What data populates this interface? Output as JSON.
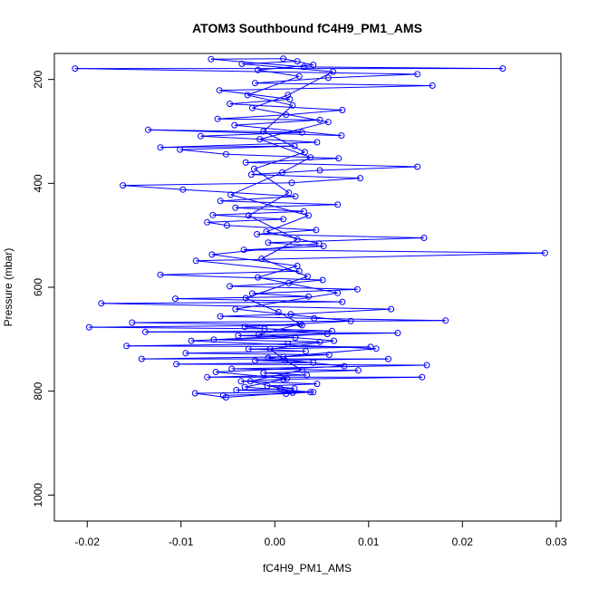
{
  "chart_data": {
    "type": "scatter",
    "title": "ATOM3 Southbound fC4H9_PM1_AMS",
    "xlabel": "fC4H9_PM1_AMS",
    "ylabel": "Pressure (mbar)",
    "xlim": [
      -0.0235,
      0.0305
    ],
    "ylim": [
      1050,
      150
    ],
    "y_reversed": true,
    "grid": false,
    "legend": "none",
    "x_ticks": [
      -0.02,
      -0.01,
      0.0,
      0.01,
      0.02,
      0.03
    ],
    "x_tick_labels": [
      "-0.02",
      "-0.01",
      "0.00",
      "0.01",
      "0.02",
      "0.03"
    ],
    "y_ticks": [
      200,
      400,
      600,
      800,
      1000
    ],
    "y_tick_labels": [
      "200",
      "400",
      "600",
      "800",
      "1000"
    ],
    "series": [
      {
        "color": "#0000ff",
        "marker": "open-circle",
        "connected": true,
        "points": [
          [
            -0.0055,
            808
          ],
          [
            0.0012,
            805
          ],
          [
            0.0038,
            802
          ],
          [
            -0.0041,
            798
          ],
          [
            0.0021,
            795
          ],
          [
            -0.0008,
            790
          ],
          [
            0.0045,
            786
          ],
          [
            -0.0036,
            781
          ],
          [
            0.0009,
            777
          ],
          [
            0.0157,
            773
          ],
          [
            -0.0072,
            773
          ],
          [
            0.0034,
            769
          ],
          [
            -0.0012,
            765
          ],
          [
            0.0089,
            760
          ],
          [
            -0.0046,
            757
          ],
          [
            0.0162,
            750
          ],
          [
            -0.0105,
            748
          ],
          [
            0.0041,
            745
          ],
          [
            -0.0021,
            741
          ],
          [
            0.0121,
            738
          ],
          [
            -0.0142,
            738
          ],
          [
            0.0009,
            734
          ],
          [
            0.0058,
            730
          ],
          [
            -0.0095,
            727
          ],
          [
            0.0033,
            723
          ],
          [
            -0.0028,
            719
          ],
          [
            0.0102,
            715
          ],
          [
            -0.0158,
            713
          ],
          [
            0.0014,
            709
          ],
          [
            0.0048,
            705
          ],
          [
            -0.0065,
            701
          ],
          [
            0.0022,
            697
          ],
          [
            -0.0039,
            693
          ],
          [
            0.0131,
            688
          ],
          [
            -0.0138,
            686
          ],
          [
            0.0061,
            684
          ],
          [
            -0.0011,
            680
          ],
          [
            -0.0198,
            677
          ],
          [
            0.0029,
            673
          ],
          [
            -0.0152,
            668
          ],
          [
            0.0182,
            664
          ],
          [
            0.0042,
            660
          ],
          [
            -0.0058,
            656
          ],
          [
            0.0017,
            652
          ],
          [
            0.0124,
            642
          ],
          [
            -0.0185,
            631
          ],
          [
            0.0072,
            628
          ],
          [
            -0.0106,
            622
          ],
          [
            0.0036,
            618
          ],
          [
            -0.0024,
            612
          ],
          [
            0.0088,
            604
          ],
          [
            -0.0048,
            598
          ],
          [
            0.0015,
            592
          ],
          [
            0.0051,
            586
          ],
          [
            -0.0122,
            576
          ],
          [
            0.0026,
            569
          ],
          [
            -0.0084,
            549
          ],
          [
            0.0288,
            534
          ],
          [
            -0.0033,
            528
          ],
          [
            0.0052,
            521
          ],
          [
            -0.0007,
            514
          ],
          [
            0.0159,
            505
          ],
          [
            -0.0019,
            498
          ],
          [
            0.0044,
            490
          ],
          [
            -0.0051,
            481
          ],
          [
            -0.0072,
            475
          ],
          [
            0.0009,
            469
          ],
          [
            -0.0066,
            461
          ],
          [
            0.0031,
            454
          ],
          [
            -0.0042,
            447
          ],
          [
            0.0067,
            441
          ],
          [
            -0.0058,
            434
          ],
          [
            0.0022,
            425
          ],
          [
            -0.0098,
            412
          ],
          [
            -0.0162,
            404
          ],
          [
            0.0018,
            399
          ],
          [
            0.0091,
            390
          ],
          [
            -0.0025,
            383
          ],
          [
            0.0048,
            375
          ],
          [
            0.0152,
            368
          ],
          [
            -0.0031,
            360
          ],
          [
            0.0068,
            352
          ],
          [
            -0.0052,
            344
          ],
          [
            -0.0101,
            335
          ],
          [
            0.0021,
            328
          ],
          [
            -0.0122,
            331
          ],
          [
            0.0045,
            321
          ],
          [
            -0.0079,
            309
          ],
          [
            0.0029,
            302
          ],
          [
            -0.0135,
            297
          ],
          [
            0.0071,
            308
          ],
          [
            -0.0043,
            288
          ],
          [
            0.0048,
            278
          ],
          [
            -0.0061,
            276
          ],
          [
            0.0012,
            268
          ],
          [
            0.0072,
            259
          ],
          [
            -0.0048,
            247
          ],
          [
            0.0016,
            238
          ],
          [
            -0.0059,
            221
          ],
          [
            0.0168,
            212
          ],
          [
            -0.0021,
            207
          ],
          [
            0.0057,
            197
          ],
          [
            0.0152,
            190
          ],
          [
            -0.0213,
            179
          ],
          [
            0.0243,
            179
          ],
          [
            0.0031,
            176
          ],
          [
            -0.0068,
            161
          ],
          [
            0.0009,
            160
          ],
          [
            0.0041,
            172
          ],
          [
            -0.0018,
            182
          ],
          [
            0.0026,
            194
          ],
          [
            -0.0029,
            230
          ],
          [
            0.0019,
            250
          ],
          [
            -0.0012,
            300
          ],
          [
            0.0032,
            340
          ],
          [
            -0.0022,
            372
          ],
          [
            0.0015,
            418
          ],
          [
            -0.0028,
            462
          ],
          [
            0.0024,
            508
          ],
          [
            -0.0014,
            545
          ],
          [
            0.0035,
            579
          ],
          [
            -0.0031,
            621
          ],
          [
            0.0004,
            648
          ],
          [
            0.0027,
            671
          ],
          [
            -0.0017,
            691
          ],
          [
            0.0063,
            703
          ],
          [
            -0.0005,
            719
          ],
          [
            0.0011,
            741
          ],
          [
            0.0029,
            759
          ],
          [
            -0.0026,
            781
          ],
          [
            0.0006,
            795
          ],
          [
            0.0019,
            803
          ],
          [
            -0.0052,
            812
          ],
          [
            -0.0085,
            804
          ],
          [
            0.0041,
            802
          ],
          [
            -0.0032,
            792
          ],
          [
            0.0013,
            776
          ],
          [
            -0.0063,
            763
          ],
          [
            0.0074,
            752
          ],
          [
            -0.0007,
            736
          ],
          [
            0.0108,
            718
          ],
          [
            -0.0089,
            703
          ],
          [
            0.0056,
            690
          ],
          [
            -0.0032,
            676
          ],
          [
            0.0081,
            665
          ],
          [
            -0.0042,
            642
          ],
          [
            0.0067,
            611
          ],
          [
            -0.0018,
            581
          ],
          [
            0.0024,
            559
          ],
          [
            -0.0067,
            537
          ],
          [
            0.0047,
            516
          ],
          [
            -0.0009,
            493
          ],
          [
            0.0036,
            462
          ],
          [
            -0.0047,
            422
          ],
          [
            0.0008,
            379
          ],
          [
            0.0038,
            350
          ],
          [
            -0.0016,
            315
          ],
          [
            0.0057,
            282
          ],
          [
            -0.0024,
            255
          ],
          [
            0.0014,
            230
          ],
          [
            0.0062,
            185
          ],
          [
            -0.0035,
            170
          ],
          [
            0.0024,
            165
          ]
        ]
      }
    ]
  }
}
